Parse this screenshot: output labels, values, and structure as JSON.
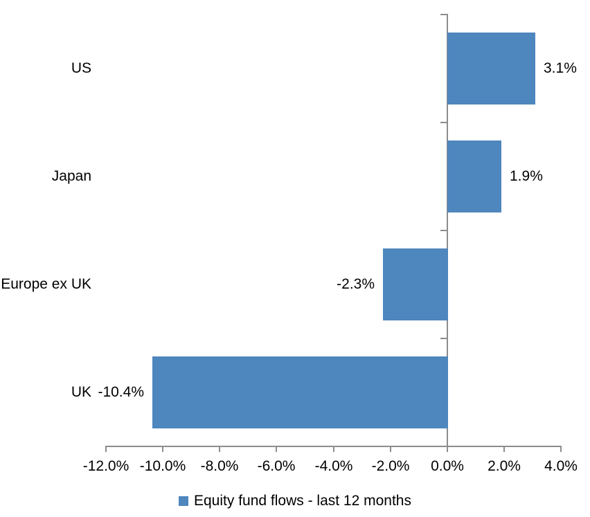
{
  "chart_data": {
    "type": "bar",
    "orientation": "horizontal",
    "title": "",
    "categories": [
      "US",
      "Japan",
      "Europe ex UK",
      "UK"
    ],
    "values": [
      3.1,
      1.9,
      -2.3,
      -10.4
    ],
    "value_labels": [
      "3.1%",
      "1.9%",
      "-2.3%",
      "-10.4%"
    ],
    "series": [
      {
        "name": "Equity fund flows - last 12 months",
        "values": [
          3.1,
          1.9,
          -2.3,
          -10.4
        ]
      }
    ],
    "x_axis": {
      "min": -12,
      "max": 4,
      "step": 2,
      "tick_values": [
        -12,
        -10,
        -8,
        -6,
        -4,
        -2,
        0,
        2,
        4
      ],
      "tick_labels": [
        "-12.0%",
        "-10.0%",
        "-8.0%",
        "-6.0%",
        "-4.0%",
        "-2.0%",
        "0.0%",
        "2.0%",
        "4.0%"
      ]
    },
    "grid": false,
    "legend_position": "bottom",
    "colors": {
      "bar": "#4E86BE",
      "axis": "#8C8C8C",
      "label": "#000000",
      "background": "#FFFFFF"
    }
  },
  "legend": {
    "label": "Equity fund flows - last 12 months"
  }
}
